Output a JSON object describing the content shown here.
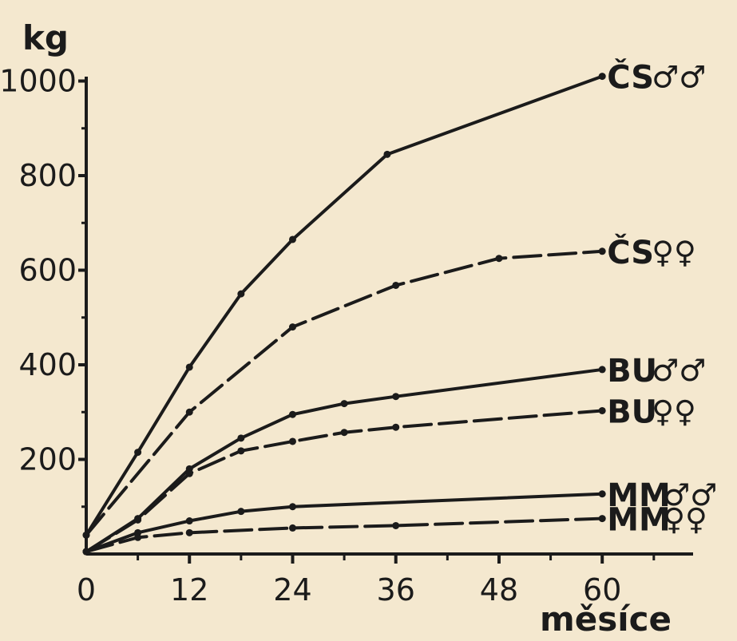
{
  "chart_data": {
    "type": "line",
    "xlabel": "měsíce",
    "ylabel": "kg",
    "xlim": [
      0,
      66
    ],
    "ylim": [
      0,
      1020
    ],
    "x_ticks": [
      "0",
      "12",
      "24",
      "36",
      "48",
      "60"
    ],
    "y_ticks": [
      "200",
      "400",
      "600",
      "800",
      "1000"
    ],
    "grid": false,
    "series": [
      {
        "name": "ČS",
        "sex": "males",
        "symbol": "♂♂",
        "style": "solid",
        "x": [
          0,
          6,
          12,
          18,
          24,
          35,
          60
        ],
        "y": [
          40,
          215,
          395,
          550,
          665,
          845,
          1010
        ]
      },
      {
        "name": "ČS",
        "sex": "females",
        "symbol": "♀♀",
        "style": "dashed",
        "x": [
          0,
          12,
          24,
          36,
          48,
          60
        ],
        "y": [
          40,
          300,
          480,
          568,
          625,
          640
        ]
      },
      {
        "name": "BU",
        "sex": "males",
        "symbol": "♂♂",
        "style": "solid",
        "x": [
          0,
          6,
          12,
          18,
          24,
          30,
          36,
          60
        ],
        "y": [
          5,
          75,
          180,
          245,
          295,
          318,
          333,
          390
        ]
      },
      {
        "name": "BU",
        "sex": "females",
        "symbol": "♀♀",
        "style": "dashed",
        "x": [
          0,
          6,
          12,
          18,
          24,
          30,
          36,
          60
        ],
        "y": [
          5,
          72,
          170,
          218,
          238,
          257,
          268,
          303
        ]
      },
      {
        "name": "MM",
        "sex": "males",
        "symbol": "♂♂",
        "style": "solid",
        "x": [
          0,
          6,
          12,
          18,
          24,
          60
        ],
        "y": [
          5,
          45,
          70,
          90,
          100,
          127
        ]
      },
      {
        "name": "MM",
        "sex": "females",
        "symbol": "♀♀",
        "style": "dashed",
        "x": [
          0,
          6,
          12,
          24,
          36,
          60
        ],
        "y": [
          5,
          35,
          45,
          55,
          60,
          75
        ]
      }
    ]
  }
}
